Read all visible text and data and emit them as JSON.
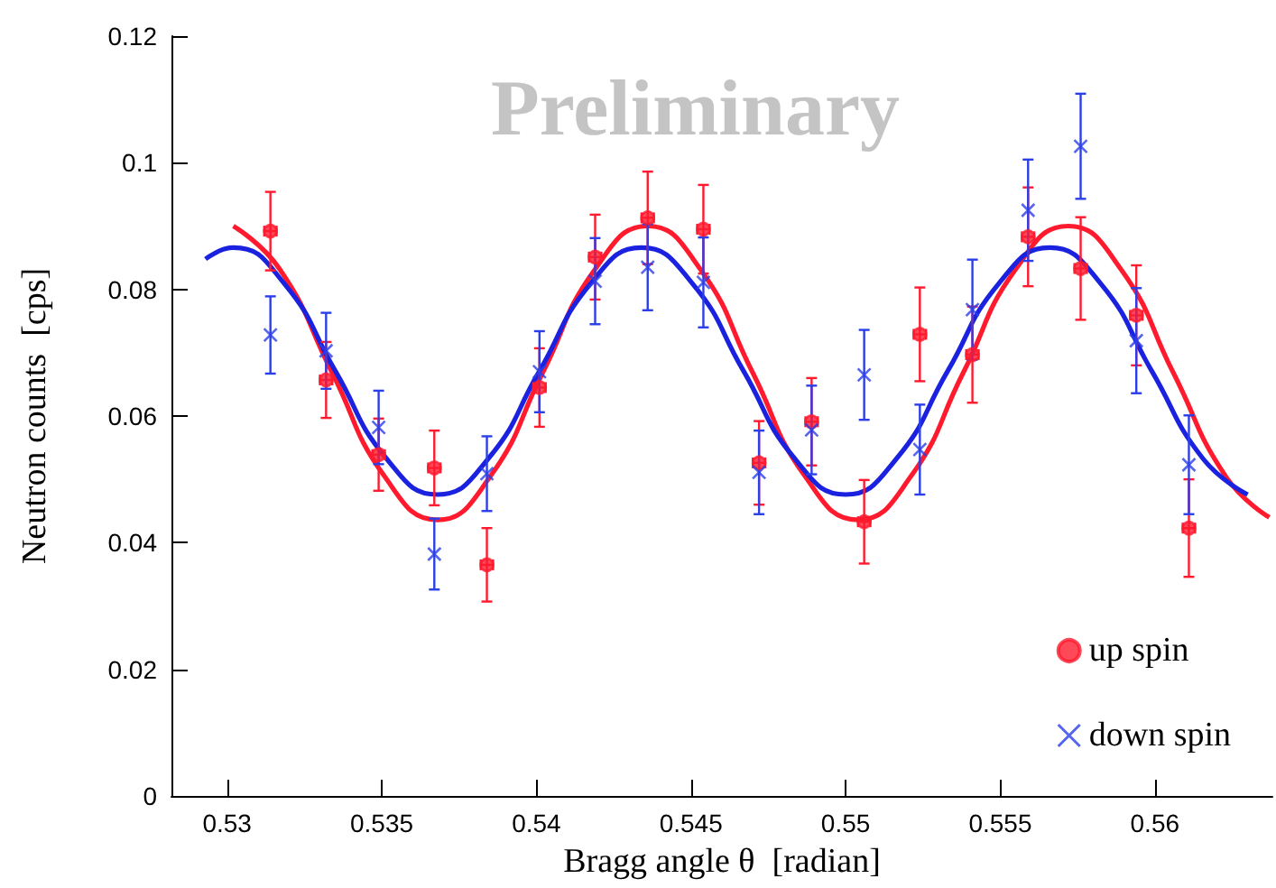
{
  "chart_data": {
    "type": "scatter",
    "xlabel": "Bragg angle θ  [radian]",
    "ylabel": "Neutron counts  [cps]",
    "annotations": [
      "Preliminary"
    ],
    "xlim": [
      0.5282,
      0.5638
    ],
    "xticks": [
      0.53,
      0.535,
      0.54,
      0.545,
      0.55,
      0.555,
      0.56
    ],
    "ylim": [
      0,
      0.12
    ],
    "yticks": [
      0,
      0.02,
      0.04,
      0.06,
      0.08,
      0.1,
      0.12
    ],
    "grid": false,
    "legend": "bottom right",
    "series": [
      {
        "name": "up spin",
        "marker": "circle",
        "color": "#ff1a2e",
        "x": [
          0.5314,
          0.5332,
          0.5349,
          0.5367,
          0.5384,
          0.5401,
          0.5419,
          0.5436,
          0.5454,
          0.5472,
          0.5489,
          0.5506,
          0.5524,
          0.5541,
          0.5559,
          0.5576,
          0.5594,
          0.5611
        ],
        "values": [
          0.0892,
          0.0657,
          0.0539,
          0.0518,
          0.0365,
          0.0645,
          0.0851,
          0.0913,
          0.0895,
          0.0526,
          0.0591,
          0.0433,
          0.0729,
          0.0697,
          0.0883,
          0.0833,
          0.0759,
          0.0423
        ],
        "errors": [
          0.0062,
          0.006,
          0.0057,
          0.0059,
          0.0058,
          0.0062,
          0.0067,
          0.0073,
          0.007,
          0.0066,
          0.0069,
          0.0066,
          0.0074,
          0.0076,
          0.0078,
          0.0081,
          0.0079,
          0.0077
        ],
        "xerrors": [
          0.0002,
          0.0002,
          0.0002,
          0.0002,
          0.0002,
          0.0002,
          0.0002,
          0.0002,
          0.0002,
          0.0002,
          0.0002,
          0.0002,
          0.0002,
          0.0002,
          0.0002,
          0.0002,
          0.0002,
          0.0002
        ]
      },
      {
        "name": "down spin",
        "marker": "cross",
        "color": "#2b3fe8",
        "x": [
          0.5314,
          0.5332,
          0.5349,
          0.5367,
          0.5384,
          0.5401,
          0.5419,
          0.5436,
          0.5454,
          0.5472,
          0.5489,
          0.5506,
          0.5524,
          0.5541,
          0.5559,
          0.5576,
          0.5594,
          0.5611
        ],
        "values": [
          0.0728,
          0.0703,
          0.0582,
          0.0382,
          0.0509,
          0.067,
          0.0813,
          0.0835,
          0.0811,
          0.0511,
          0.0578,
          0.0665,
          0.0547,
          0.0768,
          0.0925,
          0.1026,
          0.0719,
          0.0523
        ],
        "errors": [
          0.0061,
          0.006,
          0.0058,
          0.0056,
          0.0059,
          0.0064,
          0.0068,
          0.0068,
          0.0071,
          0.0066,
          0.007,
          0.0071,
          0.0071,
          0.0079,
          0.008,
          0.0083,
          0.0083,
          0.0078
        ]
      },
      {
        "type": "line",
        "marker": "none",
        "color": "#ff1a2e",
        "x": [
          0.5302,
          0.5317,
          0.5334,
          0.5351,
          0.5368,
          0.5385,
          0.5402,
          0.5419,
          0.5436,
          0.5453,
          0.547,
          0.5487,
          0.5504,
          0.5521,
          0.5538,
          0.5555,
          0.5572,
          0.5589,
          0.5606,
          0.5623,
          0.5637
        ],
        "values": [
          0.09,
          0.0832,
          0.0668,
          0.0504,
          0.0436,
          0.0504,
          0.0668,
          0.0832,
          0.09,
          0.0832,
          0.0668,
          0.0504,
          0.0436,
          0.0504,
          0.0668,
          0.0832,
          0.09,
          0.0832,
          0.0668,
          0.0504,
          0.044
        ]
      },
      {
        "type": "line",
        "marker": "none",
        "color": "#1a22e0",
        "x": [
          0.5293,
          0.5302,
          0.53185,
          0.5335,
          0.53515,
          0.5368,
          0.53845,
          0.5401,
          0.54175,
          0.5434,
          0.54505,
          0.5467,
          0.54835,
          0.55,
          0.55165,
          0.5533,
          0.55495,
          0.5566,
          0.55825,
          0.5599,
          0.56155,
          0.563
        ],
        "values": [
          0.0848,
          0.0866,
          0.0809,
          0.0671,
          0.0533,
          0.0476,
          0.0533,
          0.0671,
          0.0809,
          0.0866,
          0.0809,
          0.0671,
          0.0533,
          0.0476,
          0.0533,
          0.0671,
          0.0809,
          0.0866,
          0.0809,
          0.0671,
          0.0533,
          0.0476
        ]
      }
    ]
  }
}
